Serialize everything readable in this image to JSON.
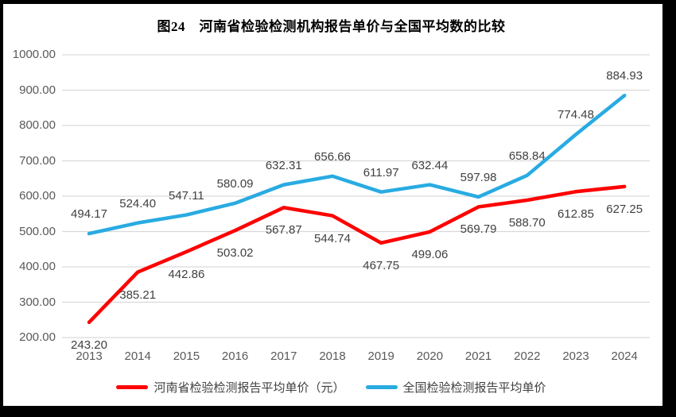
{
  "window": {
    "border_color": "#000000",
    "background": "#FFFFFF"
  },
  "chart_data": {
    "type": "line",
    "title": "图24　河南省检验检测机构报告单价与全国平均数的比较",
    "categories": [
      "2013",
      "2014",
      "2015",
      "2016",
      "2017",
      "2018",
      "2019",
      "2020",
      "2021",
      "2022",
      "2023",
      "2024"
    ],
    "series": [
      {
        "name": "河南省检验检测报告平均单价（元）",
        "color": "#FF0000",
        "data_label_position": "below",
        "values": [
          243.2,
          385.21,
          442.86,
          503.02,
          567.87,
          544.74,
          467.75,
          499.06,
          569.79,
          588.7,
          612.85,
          627.25
        ]
      },
      {
        "name": "全国检验检测报告平均单价",
        "color": "#29ABE2",
        "data_label_position": "above",
        "values": [
          494.17,
          524.4,
          547.11,
          580.09,
          632.31,
          656.66,
          611.97,
          632.44,
          597.98,
          658.84,
          774.48,
          884.93
        ]
      }
    ],
    "y_axis": {
      "min": 200,
      "max": 1000,
      "step": 100,
      "ticks": [
        "200.00",
        "300.00",
        "400.00",
        "500.00",
        "600.00",
        "700.00",
        "800.00",
        "900.00",
        "1000.00"
      ]
    },
    "xlabel": "",
    "ylabel": "",
    "grid": true,
    "gridline_color": "#D9D9D9",
    "axis_text_color": "#595959",
    "data_label_color": "#404040",
    "legend_position": "bottom"
  },
  "legend": {
    "items": [
      {
        "label": "河南省检验检测报告平均单价（元）",
        "color": "#FF0000"
      },
      {
        "label": "全国检验检测报告平均单价",
        "color": "#29ABE2"
      }
    ]
  }
}
